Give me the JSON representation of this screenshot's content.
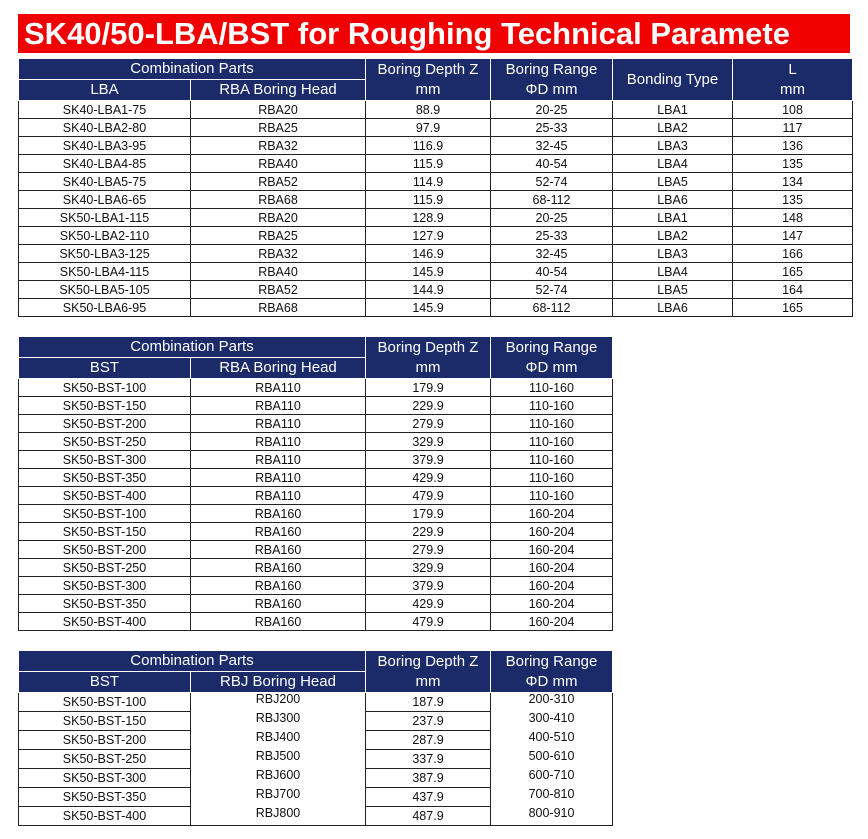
{
  "title": "SK40/50-LBA/BST for Roughing Technical Paramete",
  "tables": [
    {
      "group": "Combination Parts",
      "columns": [
        [
          "LBA"
        ],
        [
          "RBA Boring Head"
        ],
        [
          "Boring Depth Z",
          "mm"
        ],
        [
          "Boring Range",
          "ΦD mm"
        ],
        [
          "Bonding Type"
        ],
        [
          "L",
          "mm"
        ]
      ],
      "rows": [
        [
          "SK40-LBA1-75",
          "RBA20",
          "88.9",
          "20-25",
          "LBA1",
          "108"
        ],
        [
          "SK40-LBA2-80",
          "RBA25",
          "97.9",
          "25-33",
          "LBA2",
          "117"
        ],
        [
          "SK40-LBA3-95",
          "RBA32",
          "116.9",
          "32-45",
          "LBA3",
          "136"
        ],
        [
          "SK40-LBA4-85",
          "RBA40",
          "115.9",
          "40-54",
          "LBA4",
          "135"
        ],
        [
          "SK40-LBA5-75",
          "RBA52",
          "114.9",
          "52-74",
          "LBA5",
          "134"
        ],
        [
          "SK40-LBA6-65",
          "RBA68",
          "115.9",
          "68-112",
          "LBA6",
          "135"
        ],
        [
          "SK50-LBA1-115",
          "RBA20",
          "128.9",
          "20-25",
          "LBA1",
          "148"
        ],
        [
          "SK50-LBA2-110",
          "RBA25",
          "127.9",
          "25-33",
          "LBA2",
          "147"
        ],
        [
          "SK50-LBA3-125",
          "RBA32",
          "146.9",
          "32-45",
          "LBA3",
          "166"
        ],
        [
          "SK50-LBA4-115",
          "RBA40",
          "145.9",
          "40-54",
          "LBA4",
          "165"
        ],
        [
          "SK50-LBA5-105",
          "RBA52",
          "144.9",
          "52-74",
          "LBA5",
          "164"
        ],
        [
          "SK50-LBA6-95",
          "RBA68",
          "145.9",
          "68-112",
          "LBA6",
          "165"
        ]
      ]
    },
    {
      "group": "Combination Parts",
      "columns": [
        [
          "BST"
        ],
        [
          "RBA Boring Head"
        ],
        [
          "Boring Depth Z",
          "mm"
        ],
        [
          "Boring Range",
          "ΦD mm"
        ]
      ],
      "rows": [
        [
          "SK50-BST-100",
          "RBA110",
          "179.9",
          "110-160"
        ],
        [
          "SK50-BST-150",
          "RBA110",
          "229.9",
          "110-160"
        ],
        [
          "SK50-BST-200",
          "RBA110",
          "279.9",
          "110-160"
        ],
        [
          "SK50-BST-250",
          "RBA110",
          "329.9",
          "110-160"
        ],
        [
          "SK50-BST-300",
          "RBA110",
          "379.9",
          "110-160"
        ],
        [
          "SK50-BST-350",
          "RBA110",
          "429.9",
          "110-160"
        ],
        [
          "SK50-BST-400",
          "RBA110",
          "479.9",
          "110-160"
        ],
        [
          "SK50-BST-100",
          "RBA160",
          "179.9",
          "160-204"
        ],
        [
          "SK50-BST-150",
          "RBA160",
          "229.9",
          "160-204"
        ],
        [
          "SK50-BST-200",
          "RBA160",
          "279.9",
          "160-204"
        ],
        [
          "SK50-BST-250",
          "RBA160",
          "329.9",
          "160-204"
        ],
        [
          "SK50-BST-300",
          "RBA160",
          "379.9",
          "160-204"
        ],
        [
          "SK50-BST-350",
          "RBA160",
          "429.9",
          "160-204"
        ],
        [
          "SK50-BST-400",
          "RBA160",
          "479.9",
          "160-204"
        ]
      ]
    },
    {
      "group": "Combination Parts",
      "columns": [
        [
          "BST"
        ],
        [
          "RBJ Boring Head"
        ],
        [
          "Boring Depth Z",
          "mm"
        ],
        [
          "Boring Range",
          "ΦD mm"
        ]
      ],
      "rows": [
        [
          "SK50-BST-100",
          "RBJ200",
          "187.9",
          "200-310"
        ],
        [
          "SK50-BST-150",
          "RBJ300",
          "237.9",
          "300-410"
        ],
        [
          "SK50-BST-200",
          "RBJ400",
          "287.9",
          "400-510"
        ],
        [
          "SK50-BST-250",
          "RBJ500",
          "337.9",
          "500-610"
        ],
        [
          "SK50-BST-300",
          "RBJ600",
          "387.9",
          "600-710"
        ],
        [
          "SK50-BST-350",
          "RBJ700",
          "437.9",
          "700-810"
        ],
        [
          "SK50-BST-400",
          "RBJ800",
          "487.9",
          "800-910"
        ]
      ]
    }
  ]
}
